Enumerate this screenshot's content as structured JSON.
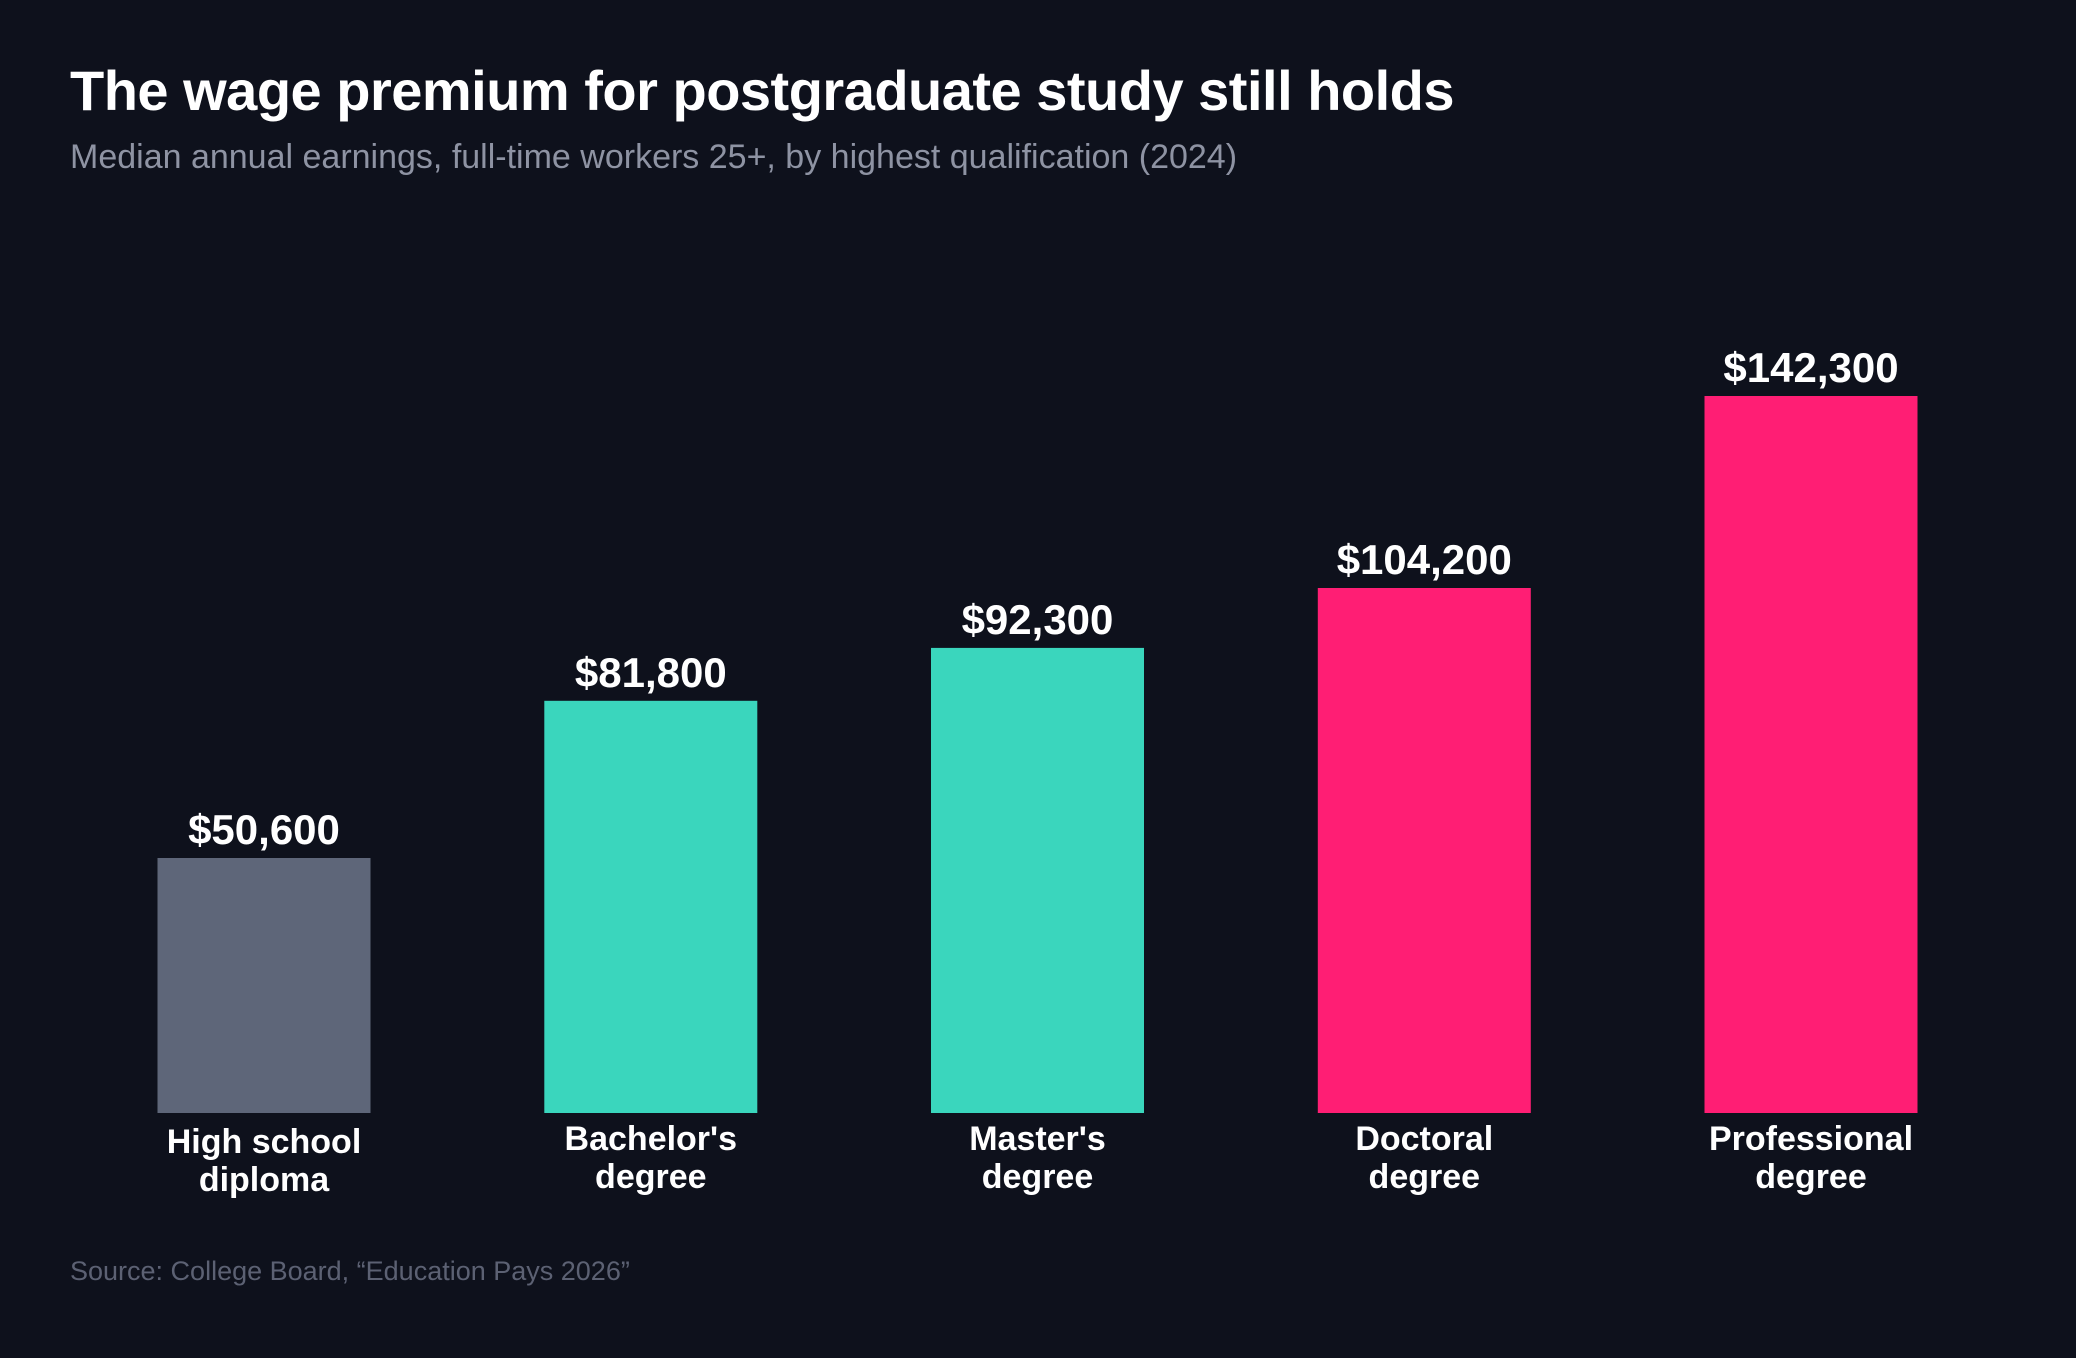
{
  "title": "The wage premium for postgraduate study still holds",
  "subtitle": "Median annual earnings, full-time workers 25+, by highest qualification (2024)",
  "source": "Source: College Board, “Education Pays 2026”",
  "chart_data": {
    "type": "bar",
    "title": "The wage premium for postgraduate study still holds",
    "subtitle": "Median annual earnings, full-time workers 25+, by highest qualification (2024)",
    "categories": [
      [
        "High school",
        "diploma"
      ],
      [
        "Bachelor's",
        "degree"
      ],
      [
        "Master's",
        "degree"
      ],
      [
        "Doctoral",
        "degree"
      ],
      [
        "Professional",
        "degree"
      ]
    ],
    "values": [
      50600,
      81800,
      92300,
      104200,
      142300
    ],
    "value_labels": [
      "$50,600",
      "$81,800",
      "$92,300",
      "$104,200",
      "$142,300"
    ],
    "bar_colors": [
      "#5e6679",
      "#3ad6bd",
      "#3ad6bd",
      "#ff1e74",
      "#ff1e74"
    ],
    "xlabel": "",
    "ylabel": "",
    "ylim": [
      0,
      142300
    ],
    "grid": false,
    "legend": "none"
  },
  "colors": {
    "background": "#0e111c",
    "text": "#ffffff",
    "subtitle": "#8e93a3",
    "source": "#5c6173"
  }
}
